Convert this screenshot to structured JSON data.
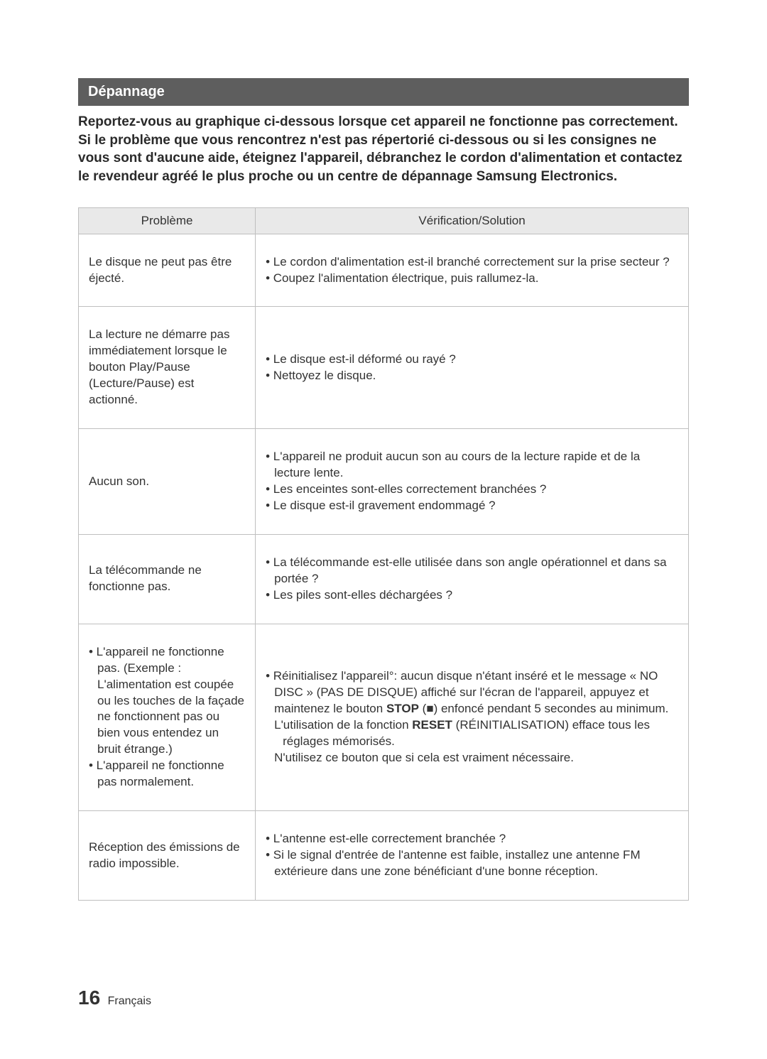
{
  "section": {
    "title": "Dépannage"
  },
  "intro": "Reportez-vous au graphique ci-dessous lorsque cet appareil ne fonctionne pas correctement. Si le problème que vous rencontrez n'est pas répertorié ci-dessous ou si les consignes ne vous sont d'aucune aide, éteignez l'appareil, débranchez le cordon d'alimentation et contactez le revendeur agréé le plus proche ou un centre de dépannage Samsung Electronics.",
  "table": {
    "headers": {
      "left": "Problème",
      "right": "Vérification/Solution"
    },
    "rows": [
      {
        "problem": "Le disque ne peut pas être éjecté.",
        "solutions": [
          "• Le cordon d'alimentation est-il branché correctement sur la prise  secteur ?",
          "• Coupez l'alimentation électrique, puis rallumez-la."
        ]
      },
      {
        "problem": "La lecture ne démarre pas immédiatement lorsque le bouton Play/Pause (Lecture/Pause) est actionné.",
        "solutions": [
          "• Le disque est-il déformé ou rayé ?",
          "• Nettoyez le disque."
        ]
      },
      {
        "problem": "Aucun son.",
        "solutions": [
          "• L'appareil ne produit aucun son au cours de la lecture rapide et de la lecture lente.",
          "• Les enceintes sont-elles correctement branchées ?",
          "• Le disque est-il gravement endommagé ?"
        ]
      },
      {
        "problem": "La télécommande ne fonctionne pas.",
        "solutions": [
          "• La télécommande est-elle utilisée dans son angle opérationnel et dans sa portée ?",
          "• Les piles sont-elles déchargées ?"
        ]
      },
      {
        "problem_lines": [
          "• L'appareil ne fonctionne pas. (Exemple : L'alimentation est coupée ou les touches de la façade ne fonctionnent pas ou bien vous entendez un bruit étrange.)",
          "• L'appareil ne fonctionne pas normalement."
        ],
        "solution_html": "• Réinitialisez l'appareil°: aucun disque n'étant inséré et le message « NO DISC » (PAS DE DISQUE) affiché sur l'écran de l'appareil, appuyez et maintenez le bouton <b>STOP</b> (■) enfoncé pendant 5 secondes au minimum.<br><span class=\"subline\">L'utilisation de la fonction <b>RESET</b> (RÉINITIALISATION) efface tous les réglages mémorisés.</span><span class=\"subline\">N'utilisez ce bouton que si cela est vraiment nécessaire.</span>"
      },
      {
        "problem": "Réception des émissions de radio impossible.",
        "solutions": [
          "• L'antenne est-elle correctement branchée ?",
          "• Si le signal d'entrée de l'antenne est faible, installez une antenne FM extérieure dans une zone bénéficiant d'une bonne réception."
        ]
      }
    ]
  },
  "footer": {
    "page_number": "16",
    "lang": "Français"
  },
  "style": {
    "page_bg": "#ffffff",
    "title_bg": "#5e5e5e",
    "title_color": "#ffffff",
    "header_row_bg": "#e9e9e9",
    "border_color": "#bfbfbf",
    "text_color": "#2a2a2a",
    "fontsize_title": 20,
    "fontsize_intro": 19,
    "fontsize_table": 17,
    "fontsize_pagenum": 28
  }
}
